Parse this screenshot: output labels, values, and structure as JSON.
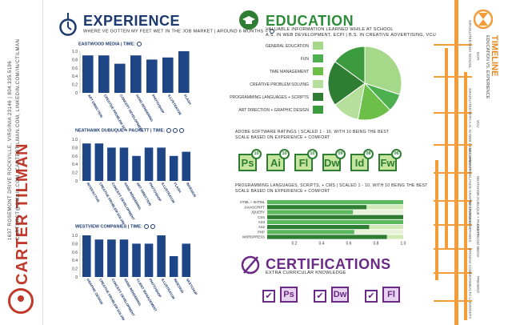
{
  "identity": {
    "name": "CARTER TILMAN",
    "address_line": "1637 ROSEMONT DRIVE ROCKVILLE, VIRGINIA 23146 | 804.335.5196",
    "contact_line": "CARTERCT@GMAIL.COM, CARTERTILMAN.COM, LINKEDIN.COM/IN/CTILMAN"
  },
  "experience": {
    "title": "Experience",
    "subtitle": "WHERE VE GOTTEN MY FEET WET IN THE JOB MARKET  |  AROUND 6 MONTHS = ",
    "charts": [
      {
        "header": "EASTWOOD MEDIA | TIME:",
        "clocks": 1,
        "categories": [
          "ART DIRECTION",
          "CREATIVE PROBLEM SOLVING",
          "CONCEPT DEVELOPMENT",
          "HAND RENDERING",
          "PHOTOSHOP",
          "ILLUSTRATOR",
          "FLASH"
        ],
        "values": [
          0.9,
          0.9,
          0.7,
          0.9,
          0.8,
          0.85,
          1.0
        ]
      },
      {
        "header": "NEATHAWK DUBUQUE + PACKETT | TIME:",
        "clocks": 3,
        "categories": [
          "INTERACTIVE",
          "CREATIVE PROBLEM SOLVING",
          "CONCEPT DEVELOPMENT",
          "HAND RENDERING",
          "ART DIRECTION",
          "PHOTOSHOP",
          "ILLUSTRATOR",
          "FLASH",
          "INDESIGN"
        ],
        "values": [
          0.9,
          0.9,
          0.8,
          0.8,
          0.6,
          0.8,
          0.8,
          0.6,
          0.7
        ]
      },
      {
        "header": "WESTVIEW COMPANIES | TIME:",
        "clocks": 2,
        "categories": [
          "GRAPHIC DESIGN",
          "CREATIVE PROBLEM SOLVING",
          "CONCEPT DEVELOPMENT",
          "HAND RENDERING",
          "CLIENT MANAGEMENT",
          "PHOTOSHOP",
          "ILLUSTRATOR",
          "INDESIGN",
          "SKETCHUP"
        ],
        "values": [
          1.0,
          0.9,
          0.9,
          0.9,
          0.8,
          0.8,
          1.0,
          0.5,
          0.8
        ]
      }
    ],
    "ticks": [
      "1.0",
      "0.8",
      "0.6",
      "0.4",
      "0.2",
      "0"
    ]
  },
  "education": {
    "title": "Education",
    "subtitle": "VALUABLE INFORMATION LEARNED WHILE AT SCHOOL",
    "degrees": "A.S. IN WEB DEVELOPMENT, ECPI  |  B.S. IN CREATIVE ADVERTISING, VCU",
    "legend": [
      {
        "label": "GENERAL EDUCATION",
        "color": "#a6d88a"
      },
      {
        "label": "FUN",
        "color": "#4caf50"
      },
      {
        "label": "TIME MANAGEMENT",
        "color": "#6cc04a"
      },
      {
        "label": "CREATIVE PROBLEM SOLVING",
        "color": "#b5df9a"
      },
      {
        "label": "PROGRAMMING LANGUAGES + SCRIPTS",
        "color": "#2f7d32"
      },
      {
        "label": "ART DIRECTION + GRAPHIC DESIGN",
        "color": "#3c9a3f"
      }
    ],
    "pie_values": [
      30,
      8,
      15,
      12,
      20,
      15
    ],
    "adobe_heading": "ADOBE SOFTWARE RATINGS  |  SCALED 1 - 10, WITH 10 BEING THE BEST",
    "adobe_scale_note": "SCALE BASED ON EXPERIENCE + COMFORT",
    "software": [
      {
        "code": "Ps",
        "rating": "10"
      },
      {
        "code": "Ai",
        "rating": "10"
      },
      {
        "code": "Fl",
        "rating": "10"
      },
      {
        "code": "Dw",
        "rating": "09"
      },
      {
        "code": "Id",
        "rating": "08"
      },
      {
        "code": "Fw",
        "rating": "06"
      }
    ],
    "prog_heading": "PROGRAMMING LANGUAGES, SCRIPTS, + CMS  |  SCALED 1 - 10, WITH 10 BEING THE BEST",
    "prog_scale_note": "SCALE BASED ON EXPERIENCE + COMFORT",
    "prog_ticks": [
      "0.2",
      "0.4",
      "0.6",
      "0.8",
      "1.0"
    ]
  },
  "chart_data": {
    "type": "bar",
    "orientation": "horizontal",
    "categories": [
      "HTML + XHTML",
      "JAVASCRIPT",
      "JQUERY",
      "CSS",
      "AS3",
      "AS2",
      "PHP",
      "WORDPRESS"
    ],
    "values": [
      1.0,
      0.73,
      0.63,
      1.0,
      1.0,
      0.75,
      0.64,
      0.88
    ],
    "xlim": [
      0,
      1.0
    ],
    "grid": false
  },
  "certifications": {
    "title": "Certifications",
    "subtitle": "EXTRA CURRICULAR KNOWLEDGE",
    "items": [
      "Ps",
      "Dw",
      "Fl"
    ]
  },
  "timeline": {
    "title": "Timeline",
    "subtitle": "EDUCATION VS. EXPERIENCE",
    "labels": [
      "GRADUATED HIGH SCHOOL",
      "ECPI",
      "GRADUATED WITH A.S. IN WEB DEVELOPMENT",
      "VCU",
      "BECAME A FREELANCE GRAPHIC DESIGNER",
      "NEATHAWK DUBUQUE + PACKETT",
      "WESTVIEW COMPANIES",
      "EASTWOOD MEDIA",
      "VIRGINIA COMMONWEALTH UNIVERSITY",
      "PRESENT"
    ]
  }
}
